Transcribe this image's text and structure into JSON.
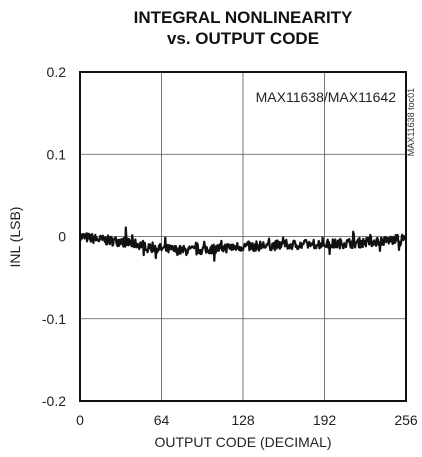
{
  "chart_data": {
    "type": "line",
    "title_line1": "INTEGRAL NONLINEARITY",
    "title_line2": "vs. OUTPUT CODE",
    "xlabel": "OUTPUT CODE (DECIMAL)",
    "ylabel": "INL (LSB)",
    "xlim": [
      0,
      256
    ],
    "ylim": [
      -0.2,
      0.2
    ],
    "x_ticks": [
      0,
      64,
      128,
      192,
      256
    ],
    "x_tick_labels": [
      "0",
      "64",
      "128",
      "192",
      "256"
    ],
    "y_ticks": [
      0.2,
      0.1,
      0,
      -0.1,
      -0.2
    ],
    "y_tick_labels": [
      "0.2",
      "0.1",
      "0",
      "-0.1",
      "-0.2"
    ],
    "grid": true,
    "annotation": "MAX11638/MAX11642",
    "figure_id": "MAX11638 toc01",
    "line_color": "#111111",
    "series": [
      {
        "x": [
          0,
          8,
          16,
          24,
          32,
          40,
          48,
          56,
          64,
          72,
          80,
          88,
          96,
          104,
          112,
          120,
          128,
          136,
          144,
          152,
          160,
          168,
          176,
          184,
          192,
          200,
          208,
          216,
          224,
          232,
          240,
          248,
          256
        ],
        "values": [
          0.0,
          -0.002,
          -0.004,
          -0.005,
          -0.006,
          -0.008,
          -0.01,
          -0.012,
          -0.015,
          -0.016,
          -0.017,
          -0.017,
          -0.016,
          -0.015,
          -0.014,
          -0.013,
          -0.012,
          -0.012,
          -0.011,
          -0.011,
          -0.01,
          -0.01,
          -0.01,
          -0.009,
          -0.009,
          -0.009,
          -0.008,
          -0.008,
          -0.007,
          -0.006,
          -0.005,
          -0.004,
          -0.002
        ]
      }
    ]
  }
}
